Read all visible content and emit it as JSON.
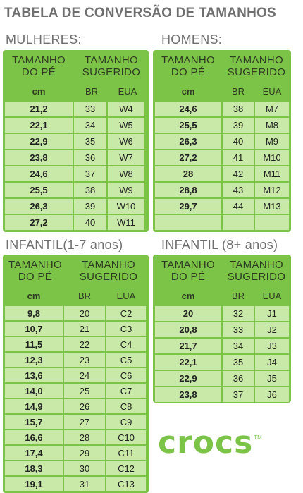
{
  "title": "TABELA DE CONVERSÃO DE TAMANHOS",
  "logo": {
    "text": "crocs",
    "tm": "TM"
  },
  "tables": {
    "mulheres": {
      "title": "MULHERES:",
      "h1a": "TAMANHO",
      "h1b": "DO PÉ",
      "h2a": "TAMANHO",
      "h2b": "SUGERIDO",
      "cm": "cm",
      "br": "BR",
      "eua": "EUA",
      "rows": [
        [
          "21,2",
          "33",
          "W4"
        ],
        [
          "22,1",
          "34",
          "W5"
        ],
        [
          "22,9",
          "35",
          "W6"
        ],
        [
          "23,8",
          "36",
          "W7"
        ],
        [
          "24,6",
          "37",
          "W8"
        ],
        [
          "25,5",
          "38",
          "W9"
        ],
        [
          "26,3",
          "39",
          "W10"
        ],
        [
          "27,2",
          "40",
          "W11"
        ]
      ]
    },
    "homens": {
      "title": "HOMENS:",
      "h1a": "TAMANHO",
      "h1b": "DO PÉ",
      "h2a": "TAMANHO",
      "h2b": "SUGERIDO",
      "cm": "cm",
      "br": "BR",
      "eua": "EUA",
      "rows": [
        [
          "24,6",
          "38",
          "M7"
        ],
        [
          "25,5",
          "39",
          "M8"
        ],
        [
          "26,3",
          "40",
          "M9"
        ],
        [
          "27,2",
          "41",
          "M10"
        ],
        [
          "28",
          "42",
          "M11"
        ],
        [
          "28,8",
          "43",
          "M12"
        ],
        [
          "29,7",
          "44",
          "M13"
        ],
        [
          "",
          "",
          ""
        ]
      ]
    },
    "infantil17": {
      "title": "INFANTIL(1-7 anos)",
      "h1a": "TAMANHO",
      "h1b": "DO PÉ",
      "h2a": "TAMANHO",
      "h2b": "SUGERIDO",
      "cm": "cm",
      "br": "BR",
      "eua": "EUA",
      "rows": [
        [
          "9,8",
          "20",
          "C2"
        ],
        [
          "10,7",
          "21",
          "C3"
        ],
        [
          "11,5",
          "22",
          "C4"
        ],
        [
          "12,3",
          "23",
          "C5"
        ],
        [
          "13,6",
          "24",
          "C6"
        ],
        [
          "14,0",
          "25",
          "C7"
        ],
        [
          "14,9",
          "26",
          "C8"
        ],
        [
          "15,7",
          "27",
          "C9"
        ],
        [
          "16,6",
          "28",
          "C10"
        ],
        [
          "17,4",
          "29",
          "C11"
        ],
        [
          "18,3",
          "30",
          "C12"
        ],
        [
          "19,1",
          "31",
          "C13"
        ]
      ]
    },
    "infantil8": {
      "title": "INFANTIL (8+ anos)",
      "h1a": "TAMANHO",
      "h1b": "DO PÉ",
      "h2a": "TAMANHO",
      "h2b": "SUGERIDO",
      "cm": "cm",
      "br": "BR",
      "eua": "EUA",
      "rows": [
        [
          "20",
          "32",
          "J1"
        ],
        [
          "20,8",
          "33",
          "J2"
        ],
        [
          "21,7",
          "34",
          "J3"
        ],
        [
          "22,1",
          "35",
          "J4"
        ],
        [
          "22,9",
          "36",
          "J5"
        ],
        [
          "23,8",
          "37",
          "J6"
        ]
      ]
    }
  }
}
